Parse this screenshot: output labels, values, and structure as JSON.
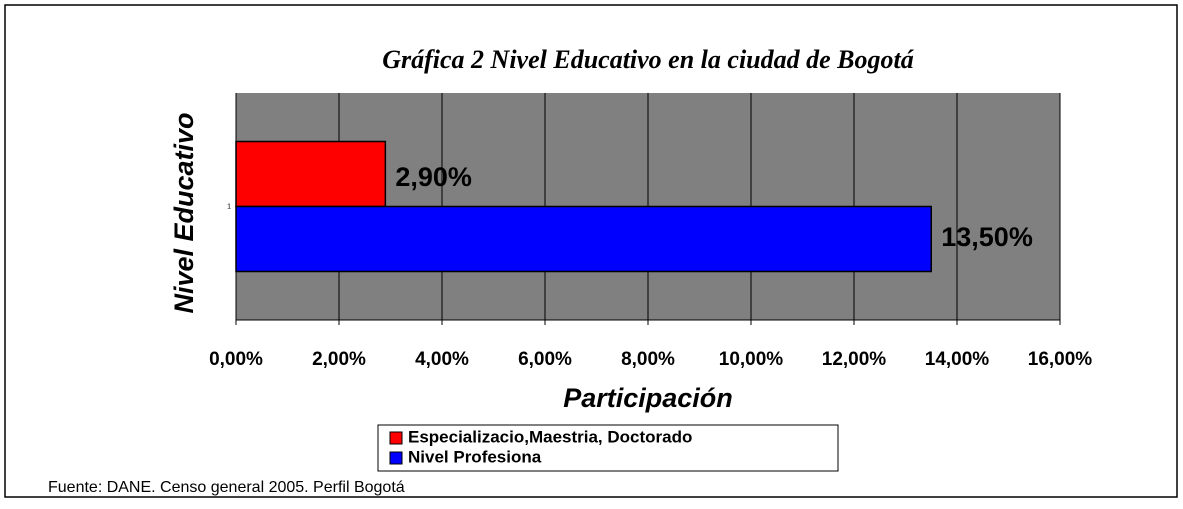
{
  "chart_data": {
    "type": "bar",
    "orientation": "horizontal",
    "title": "Gráfica 2 Nivel Educativo en la ciudad de Bogotá",
    "x_label": "Participación",
    "y_label": "Nivel Educativo",
    "categories": [
      "1"
    ],
    "series": [
      {
        "name": "Especializacio,Maestria, Doctorado",
        "color": "#ff0000",
        "values": [
          2.9
        ],
        "value_labels": [
          "2,90%"
        ]
      },
      {
        "name": "Nivel Profesiona",
        "color": "#0000ff",
        "values": [
          13.5
        ],
        "value_labels": [
          "13,50%"
        ]
      }
    ],
    "xlim": [
      0,
      16
    ],
    "xticks": [
      {
        "value": 0,
        "label": "0,00%"
      },
      {
        "value": 2,
        "label": "2,00%"
      },
      {
        "value": 4,
        "label": "4,00%"
      },
      {
        "value": 6,
        "label": "6,00%"
      },
      {
        "value": 8,
        "label": "8,00%"
      },
      {
        "value": 10,
        "label": "10,00%"
      },
      {
        "value": 12,
        "label": "12,00%"
      },
      {
        "value": 14,
        "label": "14,00%"
      },
      {
        "value": 16,
        "label": "16,00%"
      }
    ],
    "grid": true,
    "background": "#808080",
    "source": "Fuente: DANE. Censo general 2005. Perfil Bogotá"
  }
}
